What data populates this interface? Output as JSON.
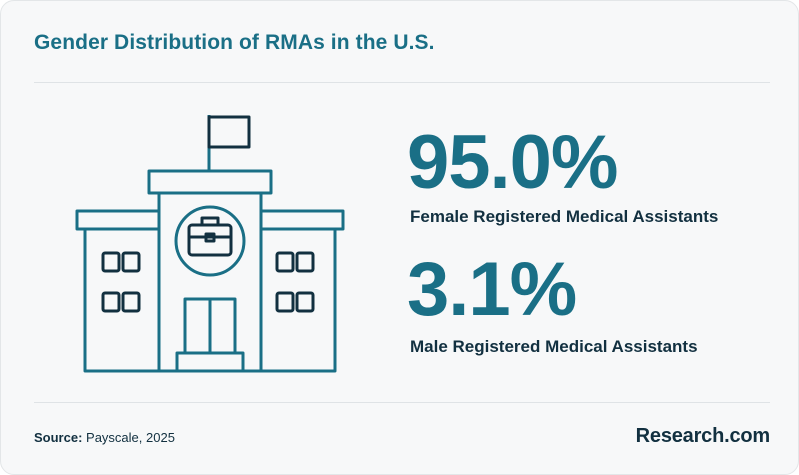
{
  "title": "Gender Distribution of RMAs in the U.S.",
  "stats": [
    {
      "value": "95.0%",
      "label": "Female Registered Medical Assistants"
    },
    {
      "value": "3.1%",
      "label": "Male Registered Medical Assistants"
    }
  ],
  "source": {
    "prefix": "Source:",
    "text": "Payscale, 2025"
  },
  "brand": "Research.com",
  "colors": {
    "accent": "#1a6f86",
    "dark": "#123040",
    "background": "#f7f8f9"
  },
  "icon": "school-building-briefcase-icon"
}
